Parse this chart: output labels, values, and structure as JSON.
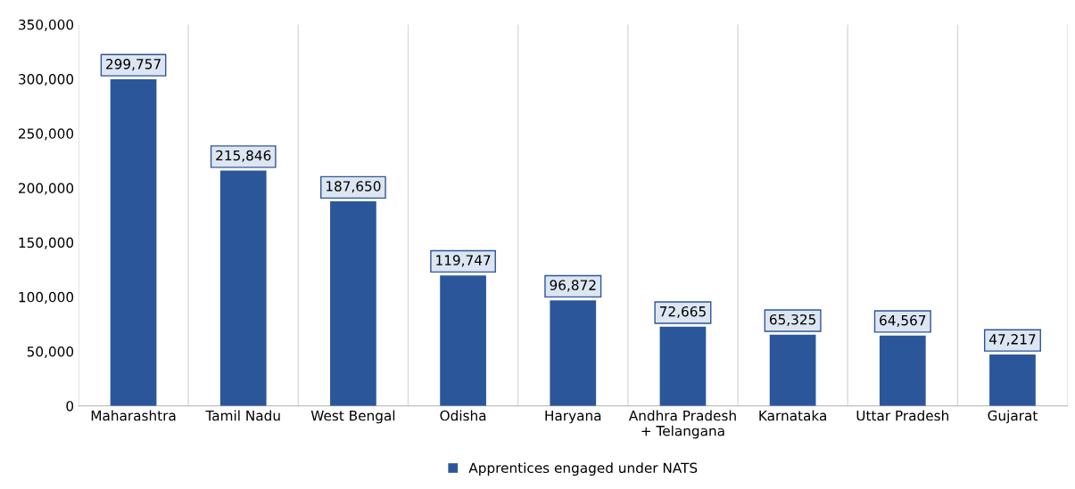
{
  "chart_data": {
    "type": "bar",
    "categories": [
      "Maharashtra",
      "Tamil Nadu",
      "West Bengal",
      "Odisha",
      "Haryana",
      "Andhra Pradesh\n+ Telangana",
      "Karnataka",
      "Uttar Pradesh",
      "Gujarat"
    ],
    "series": [
      {
        "name": "Apprentices engaged under NATS",
        "color": "#2b579a",
        "values": [
          299757,
          215846,
          187650,
          119747,
          96872,
          72665,
          65325,
          64567,
          47217
        ]
      }
    ],
    "value_labels": [
      "299,757",
      "215,846",
      "187,650",
      "119,747",
      "96,872",
      "72,665",
      "65,325",
      "64,567",
      "47,217"
    ],
    "ylim": [
      0,
      350000
    ],
    "yticks": [
      {
        "value": 0,
        "label": "0"
      },
      {
        "value": 50000,
        "label": "50,000"
      },
      {
        "value": 100000,
        "label": "100,000"
      },
      {
        "value": 150000,
        "label": "150,000"
      },
      {
        "value": 200000,
        "label": "200,000"
      },
      {
        "value": 250000,
        "label": "250,000"
      },
      {
        "value": 300000,
        "label": "300,000"
      },
      {
        "value": 350000,
        "label": "350,000"
      }
    ],
    "grid": "x",
    "legend": "bottom"
  }
}
